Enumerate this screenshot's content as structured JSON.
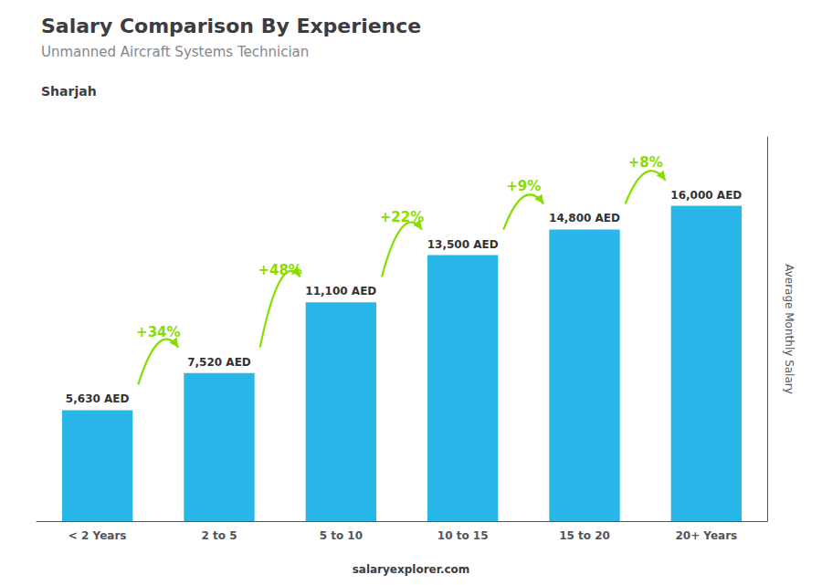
{
  "chart_data": {
    "type": "bar",
    "title": "Salary Comparison By Experience",
    "subtitle": "Unmanned Aircraft Systems Technician",
    "city": "Sharjah",
    "categories": [
      "< 2 Years",
      "2 to 5",
      "5 to 10",
      "10 to 15",
      "15 to 20",
      "20+ Years"
    ],
    "values": [
      5630,
      7520,
      11100,
      13500,
      14800,
      16000
    ],
    "value_labels": [
      "5,630 AED",
      "7,520 AED",
      "11,100 AED",
      "13,500 AED",
      "14,800 AED",
      "16,000 AED"
    ],
    "data_labels": true,
    "color": "#29b6e8",
    "ylabel": "Average Monthly Salary",
    "ylim": [
      0,
      19500
    ],
    "yticks": [],
    "tick_labels": "x",
    "grid": false,
    "annotations": [
      {
        "text": "+34%",
        "from": "< 2 Years",
        "to": "2 to 5",
        "color": "#88dd00"
      },
      {
        "text": "+48%",
        "from": "2 to 5",
        "to": "5 to 10",
        "color": "#88dd00"
      },
      {
        "text": "+22%",
        "from": "5 to 10",
        "to": "10 to 15",
        "color": "#88dd00"
      },
      {
        "text": "+9%",
        "from": "10 to 15",
        "to": "15 to 20",
        "color": "#88dd00"
      },
      {
        "text": "+8%",
        "from": "15 to 20",
        "to": "20+ Years",
        "color": "#88dd00"
      }
    ],
    "footer": "salaryexplorer.com"
  }
}
